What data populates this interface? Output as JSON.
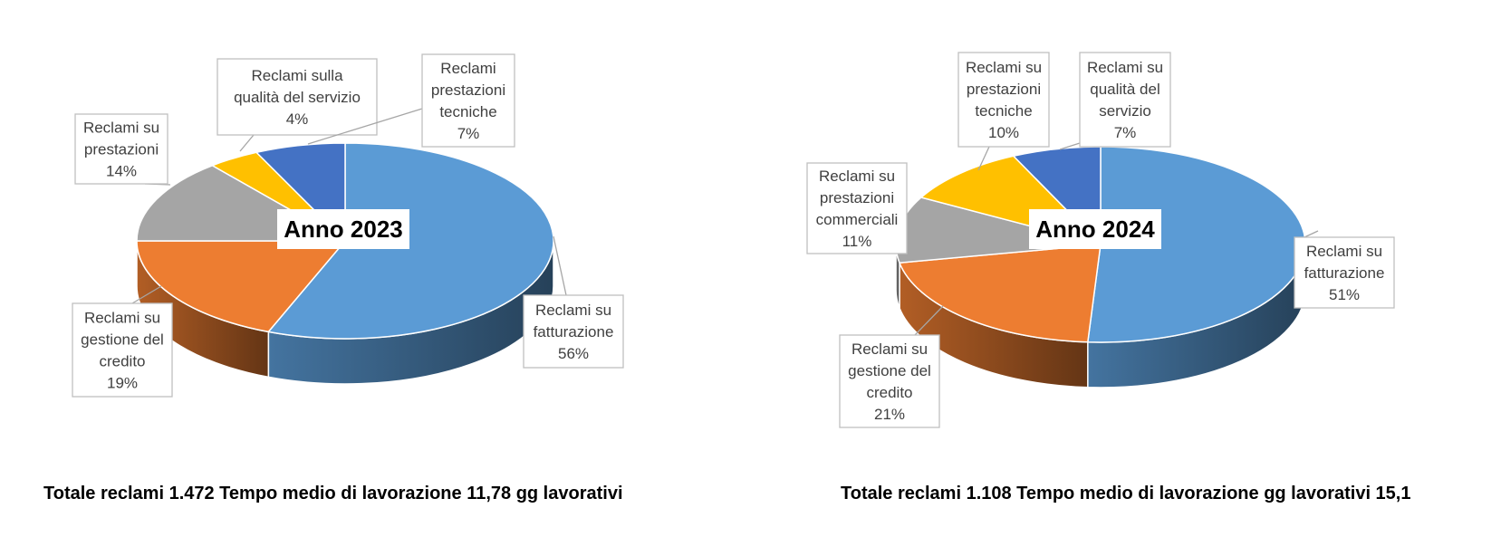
{
  "colors": {
    "fatturazione": "#5b9bd5",
    "gestione_credito": "#ed7d31",
    "prestazioni": "#a5a5a5",
    "qualita": "#ffc000",
    "prestazioni_tecniche": "#4472c4"
  },
  "chart_data": [
    {
      "type": "pie",
      "title": "Anno 2023",
      "caption": "Totale reclami 1.472 Tempo medio di lavorazione 11,78 gg lavorativi",
      "slices": [
        {
          "name": "Reclami su fatturazione",
          "lines": [
            "Reclami su",
            "fatturazione",
            "56%"
          ],
          "value": 56,
          "color": "#5b9bd5"
        },
        {
          "name": "Reclami su gestione del credito",
          "lines": [
            "Reclami su",
            "gestione del",
            "credito",
            "19%"
          ],
          "value": 19,
          "color": "#ed7d31"
        },
        {
          "name": "Reclami su prestazioni",
          "lines": [
            "Reclami su",
            "prestazioni",
            "14%"
          ],
          "value": 14,
          "color": "#a5a5a5"
        },
        {
          "name": "Reclami sulla qualità del servizio",
          "lines": [
            "Reclami sulla",
            "qualità del servizio",
            "4%"
          ],
          "value": 4,
          "color": "#ffc000"
        },
        {
          "name": "Reclami prestazioni tecniche",
          "lines": [
            "Reclami",
            "prestazioni",
            "tecniche",
            "7%"
          ],
          "value": 7,
          "color": "#4472c4"
        }
      ]
    },
    {
      "type": "pie",
      "title": "Anno 2024",
      "caption": "Totale reclami 1.108 Tempo medio di lavorazione gg lavorativi 15,1",
      "slices": [
        {
          "name": "Reclami su fatturazione",
          "lines": [
            "Reclami su",
            "fatturazione",
            "51%"
          ],
          "value": 51,
          "color": "#5b9bd5"
        },
        {
          "name": "Reclami su gestione del credito",
          "lines": [
            "Reclami su",
            "gestione del",
            "credito",
            "21%"
          ],
          "value": 21,
          "color": "#ed7d31"
        },
        {
          "name": "Reclami su prestazioni commerciali",
          "lines": [
            "Reclami su",
            "prestazioni",
            "commerciali",
            "11%"
          ],
          "value": 11,
          "color": "#a5a5a5"
        },
        {
          "name": "Reclami su prestazioni tecniche",
          "lines": [
            "Reclami su",
            "prestazioni",
            "tecniche",
            "10%"
          ],
          "value": 10,
          "color": "#ffc000"
        },
        {
          "name": "Reclami su qualità del servizio",
          "lines": [
            "Reclami su",
            "qualità del",
            "servizio",
            "7%"
          ],
          "value": 7,
          "color": "#4472c4"
        }
      ]
    }
  ]
}
